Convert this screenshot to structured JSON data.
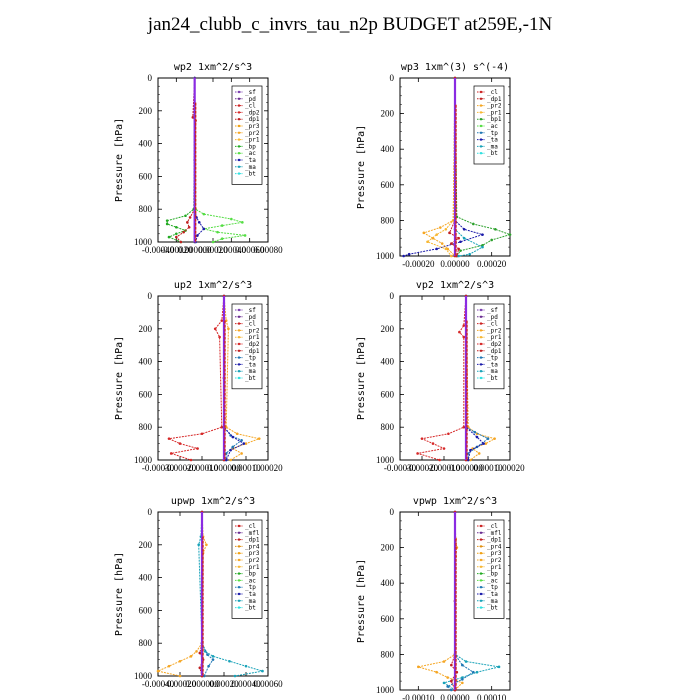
{
  "page": {
    "title": "jan24_clubb_c_invrs_tau_n2p  BUDGET at259E,-1N"
  },
  "colors": {
    "_sf": "#7b3fb0",
    "_pd": "#6a2c91",
    "_cl": "#cc2222",
    "_dp2": "#d62828",
    "_dp1": "#c02020",
    "_pr3": "#f0a010",
    "_pr2": "#f5a623",
    "_pr1": "#f7b733",
    "_pr4": "#e09010",
    "_mfl": "#6a2c91",
    "_bp1": "#2ca02c",
    "_bp": "#22aa22",
    "_ac": "#55dd44",
    "_tp": "#1f77b4",
    "_ta": "#1a1aaa",
    "_ma": "#17a2b8",
    "_bt": "#2ee0e0"
  },
  "chart_data": [
    {
      "type": "line",
      "title": "wp2  1xm^2/s^3",
      "ylabel": "Pressure [hPa]",
      "xlim": [
        -0.0004,
        0.0008
      ],
      "ylim": [
        1000,
        0
      ],
      "xticks": [
        -0.0004,
        -0.0002,
        0.0,
        0.0002,
        0.0004,
        0.0006,
        0.0008
      ],
      "xticklabels": [
        "-0.00040",
        "-0.00020",
        "0.000000",
        "0.00020",
        "0.00040",
        "0.00060",
        "0.00080"
      ],
      "yticks": [
        0,
        200,
        400,
        600,
        800,
        1000
      ],
      "legend": [
        "_sf",
        "_pd",
        "_cl",
        "_dp2",
        "_dp1",
        "_pr3",
        "_pr2",
        "_pr1",
        "_bp",
        "_ac",
        "_ta",
        "_ma",
        "_bt"
      ],
      "legend_placement": "top-right",
      "series": [
        {
          "name": "_ac",
          "pressure": [
            0,
            800,
            830,
            860,
            880,
            900,
            920,
            940,
            960,
            980,
            1000
          ],
          "values": [
            0,
            1e-05,
            0.0001,
            0.0004,
            0.00052,
            0.0003,
            0.0001,
            0.00025,
            0.00055,
            0.0003,
            0.0002
          ]
        },
        {
          "name": "_bp",
          "pressure": [
            0,
            800,
            840,
            870,
            890,
            910,
            930,
            950,
            970,
            1000
          ],
          "values": [
            0,
            -1e-05,
            -0.0001,
            -0.0003,
            -0.0003,
            -0.0002,
            -0.0001,
            -0.0002,
            -0.00028,
            -0.00015
          ]
        },
        {
          "name": "_dp1",
          "pressure": [
            0,
            240,
            260,
            800,
            850,
            880,
            910,
            940,
            970,
            1000
          ],
          "values": [
            0,
            -2e-05,
            1e-05,
            0,
            -5e-05,
            -8e-05,
            -6e-05,
            -0.00012,
            -0.0002,
            -0.00015
          ]
        },
        {
          "name": "_ta",
          "pressure": [
            0,
            800,
            850,
            880,
            920,
            960,
            1000
          ],
          "values": [
            0,
            0,
            2e-05,
            5e-05,
            0.0001,
            3e-05,
            1e-05
          ]
        },
        {
          "name": "_bt",
          "pressure": [
            0,
            500,
            1000
          ],
          "values": [
            0,
            0,
            0
          ]
        },
        {
          "name": "_pd",
          "pressure": [
            0,
            500,
            1000
          ],
          "values": [
            0,
            0,
            0
          ]
        }
      ]
    },
    {
      "type": "line",
      "title": "wp3  1xm^(3) s^(-4)",
      "ylabel": "Pressure [hPa]",
      "xlim": [
        -0.0003,
        0.0003
      ],
      "ylim": [
        1000,
        0
      ],
      "xticks": [
        -0.0002,
        0.0,
        0.0002
      ],
      "xticklabels": [
        "-0.00020",
        "0.00000",
        "0.00020"
      ],
      "yticks": [
        0,
        200,
        400,
        600,
        800,
        1000
      ],
      "legend": [
        "_cl",
        "_dp1",
        "_pr2",
        "_pr1",
        "_bp1",
        "_ac",
        "_tp",
        "_ta",
        "_ma",
        "_bt"
      ],
      "legend_placement": "top-right",
      "series": [
        {
          "name": "_bp1",
          "pressure": [
            0,
            780,
            820,
            850,
            880,
            910,
            940,
            970,
            1000
          ],
          "values": [
            0,
            1e-05,
            0.0001,
            0.00022,
            0.0003,
            0.0002,
            0.00015,
            3e-05,
            1e-05
          ]
        },
        {
          "name": "_ta",
          "pressure": [
            0,
            800,
            850,
            880,
            920,
            960,
            990,
            1000
          ],
          "values": [
            0,
            0,
            5e-05,
            0.00015,
            3e-05,
            -0.0001,
            -0.00025,
            -0.00028
          ]
        },
        {
          "name": "_pr2",
          "pressure": [
            0,
            800,
            840,
            870,
            900,
            930,
            960,
            1000
          ],
          "values": [
            0,
            -1e-05,
            -8e-05,
            -0.00017,
            -0.00012,
            -7e-05,
            -4e-05,
            0
          ]
        },
        {
          "name": "_pr1",
          "pressure": [
            0,
            800,
            850,
            880,
            920,
            960,
            1000
          ],
          "values": [
            0,
            -1e-05,
            -5e-05,
            -0.0001,
            -0.00015,
            -5e-05,
            -2e-05
          ]
        },
        {
          "name": "_dp1",
          "pressure": [
            0,
            800,
            870,
            900,
            930,
            960,
            1000
          ],
          "values": [
            0,
            0,
            -3e-05,
            2e-05,
            -2e-05,
            2e-05,
            1e-05
          ]
        },
        {
          "name": "_ma",
          "pressure": [
            0,
            850,
            900,
            950,
            990,
            1000
          ],
          "values": [
            0,
            0,
            5e-05,
            0.00015,
            8e-05,
            2e-05
          ]
        },
        {
          "name": "_cl",
          "pressure": [
            0,
            500,
            1000
          ],
          "values": [
            0,
            0,
            0
          ]
        }
      ]
    },
    {
      "type": "line",
      "title": "up2  1xm^2/s^3",
      "ylabel": "Pressure [hPa]",
      "xlim": [
        -0.0003,
        0.0002
      ],
      "ylim": [
        1000,
        0
      ],
      "xticks": [
        -0.0003,
        -0.0002,
        -0.0001,
        0.0,
        0.0001,
        0.0002
      ],
      "xticklabels": [
        "-0.00030",
        "-0.00020",
        "-0.00010",
        "0.000000",
        "0.00010",
        "0.00020"
      ],
      "yticks": [
        0,
        200,
        400,
        600,
        800,
        1000
      ],
      "legend": [
        "_sf",
        "_pd",
        "_cl",
        "_pr2",
        "_pr1",
        "_dp2",
        "_dp1",
        "_tp",
        "_ta",
        "_ma",
        "_bt"
      ],
      "legend_placement": "top-right",
      "series": [
        {
          "name": "_dp2",
          "pressure": [
            0,
            150,
            200,
            250,
            800,
            840,
            870,
            900,
            930,
            960,
            1000
          ],
          "values": [
            0,
            -1e-05,
            -4e-05,
            -2e-05,
            -1e-05,
            -0.0001,
            -0.00025,
            -0.0002,
            -0.00012,
            -0.00024,
            -0.00015
          ]
        },
        {
          "name": "_pr2",
          "pressure": [
            0,
            150,
            200,
            800,
            840,
            870,
            900,
            930,
            960,
            1000
          ],
          "values": [
            0,
            1e-05,
            2e-05,
            1e-05,
            6e-05,
            0.00016,
            0.0001,
            4e-05,
            8e-05,
            3e-05
          ]
        },
        {
          "name": "_tp",
          "pressure": [
            0,
            800,
            850,
            880,
            920,
            960,
            1000
          ],
          "values": [
            0,
            0,
            3e-05,
            8e-05,
            4e-05,
            1e-05,
            1e-05
          ]
        },
        {
          "name": "_ta",
          "pressure": [
            0,
            800,
            860,
            900,
            940,
            1000
          ],
          "values": [
            0,
            0,
            4e-05,
            9e-05,
            3e-05,
            1e-05
          ]
        },
        {
          "name": "_pd",
          "pressure": [
            0,
            500,
            1000
          ],
          "values": [
            0,
            0,
            0
          ]
        },
        {
          "name": "_cl",
          "pressure": [
            0,
            500,
            1000
          ],
          "values": [
            0,
            0,
            0
          ]
        }
      ]
    },
    {
      "type": "line",
      "title": "vp2  1xm^2/s^3",
      "ylabel": "Pressure [hPa]",
      "xlim": [
        -0.0003,
        0.0002
      ],
      "ylim": [
        1000,
        0
      ],
      "xticks": [
        -0.0003,
        -0.0002,
        -0.0001,
        0.0,
        0.0001,
        0.0002
      ],
      "xticklabels": [
        "-0.00030",
        "-0.00020",
        "-0.00010",
        "0.000000",
        "0.00010",
        "0.00020"
      ],
      "yticks": [
        0,
        200,
        400,
        600,
        800,
        1000
      ],
      "legend": [
        "_sf",
        "_pd",
        "_cl",
        "_pr2",
        "_pr1",
        "_dp2",
        "_dp1",
        "_tp",
        "_ta",
        "_ma",
        "_bt"
      ],
      "legend_placement": "top-right",
      "series": [
        {
          "name": "_dp2",
          "pressure": [
            0,
            180,
            220,
            250,
            800,
            840,
            870,
            900,
            930,
            960,
            1000
          ],
          "values": [
            0,
            -1e-05,
            -3e-05,
            -1e-05,
            -1e-05,
            -8e-05,
            -0.0002,
            -0.00015,
            -0.0001,
            -0.00022,
            -0.00012
          ]
        },
        {
          "name": "_pr2",
          "pressure": [
            0,
            800,
            840,
            870,
            900,
            930,
            960,
            1000
          ],
          "values": [
            0,
            1e-05,
            5e-05,
            0.00013,
            9e-05,
            3e-05,
            6e-05,
            2e-05
          ]
        },
        {
          "name": "_tp",
          "pressure": [
            0,
            800,
            830,
            870,
            920,
            960,
            1000
          ],
          "values": [
            0,
            0,
            4e-05,
            0.0001,
            5e-05,
            1e-05,
            1e-05
          ]
        },
        {
          "name": "_ta",
          "pressure": [
            0,
            800,
            860,
            900,
            940,
            1000
          ],
          "values": [
            0,
            0,
            5e-05,
            8e-05,
            2e-05,
            1e-05
          ]
        },
        {
          "name": "_pd",
          "pressure": [
            0,
            500,
            1000
          ],
          "values": [
            0,
            0,
            0
          ]
        },
        {
          "name": "_cl",
          "pressure": [
            0,
            500,
            1000
          ],
          "values": [
            0,
            0,
            0
          ]
        }
      ]
    },
    {
      "type": "line",
      "title": "upwp  1xm^2/s^3",
      "ylabel": "Pressure [hPa]",
      "xlim": [
        -0.0004,
        0.0006
      ],
      "ylim": [
        1000,
        0
      ],
      "xticks": [
        -0.0004,
        -0.0002,
        0.0,
        0.0002,
        0.0004,
        0.0006
      ],
      "xticklabels": [
        "-0.00040",
        "-0.00020",
        "0.000000",
        "0.00020",
        "0.00040",
        "0.00060"
      ],
      "yticks": [
        0,
        200,
        400,
        600,
        800,
        1000
      ],
      "legend": [
        "_cl",
        "_mfl",
        "_dp1",
        "_pr4",
        "_pr3",
        "_pr2",
        "_pr1",
        "_bp",
        "_ac",
        "_tp",
        "_ta",
        "_ma",
        "_bt"
      ],
      "legend_placement": "top-right",
      "series": [
        {
          "name": "_pr2",
          "pressure": [
            0,
            150,
            200,
            250,
            800,
            850,
            880,
            910,
            940,
            970,
            1000
          ],
          "values": [
            0,
            1e-05,
            4e-05,
            1e-05,
            0,
            -5e-05,
            -0.0001,
            -0.0002,
            -0.0003,
            -0.0004,
            -0.0002
          ]
        },
        {
          "name": "_ma",
          "pressure": [
            0,
            150,
            200,
            800,
            850,
            880,
            910,
            940,
            970,
            1000
          ],
          "values": [
            0,
            -1e-05,
            -3e-05,
            0,
            3e-05,
            0.0001,
            0.00025,
            0.0004,
            0.00055,
            0.0003
          ]
        },
        {
          "name": "_tp",
          "pressure": [
            0,
            800,
            870,
            900,
            940,
            1000
          ],
          "values": [
            0,
            0,
            5e-05,
            0.0001,
            6e-05,
            2e-05
          ]
        },
        {
          "name": "_dp1",
          "pressure": [
            0,
            800,
            860,
            900,
            950,
            1000
          ],
          "values": [
            0,
            0,
            -2e-05,
            1e-05,
            -2e-05,
            0
          ]
        },
        {
          "name": "_mfl",
          "pressure": [
            0,
            500,
            1000
          ],
          "values": [
            0,
            0,
            0
          ]
        },
        {
          "name": "_cl",
          "pressure": [
            0,
            500,
            1000
          ],
          "values": [
            0,
            0,
            0
          ]
        }
      ]
    },
    {
      "type": "line",
      "title": "vpwp  1xm^2/s^3",
      "ylabel": "Pressure [hPa]",
      "xlim": [
        -0.00015,
        0.00015
      ],
      "ylim": [
        1000,
        0
      ],
      "xticks": [
        -0.0001,
        0.0,
        0.0001
      ],
      "xticklabels": [
        "-0.00010",
        "0.00000",
        "0.00010"
      ],
      "yticks": [
        0,
        200,
        400,
        600,
        800,
        1000
      ],
      "legend": [
        "_cl",
        "_mfl",
        "_dp1",
        "_pr4",
        "_pr3",
        "_pr2",
        "_pr1",
        "_bp",
        "_ac",
        "_tp",
        "_ta",
        "_ma",
        "_bt"
      ],
      "legend_placement": "top-right",
      "series": [
        {
          "name": "_pr2",
          "pressure": [
            0,
            150,
            200,
            250,
            800,
            840,
            870,
            900,
            930,
            960,
            1000
          ],
          "values": [
            0,
            2e-06,
            5e-06,
            2e-06,
            0,
            -3e-05,
            -0.0001,
            -5e-05,
            -2e-05,
            2e-05,
            0
          ]
        },
        {
          "name": "_ma",
          "pressure": [
            0,
            800,
            840,
            870,
            900,
            930,
            960,
            1000
          ],
          "values": [
            0,
            0,
            3e-05,
            0.00012,
            6e-05,
            2e-05,
            -3e-05,
            0
          ]
        },
        {
          "name": "_tp",
          "pressure": [
            0,
            800,
            860,
            900,
            940,
            980,
            1000
          ],
          "values": [
            0,
            0,
            2e-05,
            5e-05,
            2e-05,
            -2e-05,
            -1e-05
          ]
        },
        {
          "name": "_dp1",
          "pressure": [
            0,
            800,
            860,
            900,
            950,
            1000
          ],
          "values": [
            0,
            0,
            -1e-05,
            5e-06,
            -1e-05,
            0
          ]
        },
        {
          "name": "_mfl",
          "pressure": [
            0,
            500,
            1000
          ],
          "values": [
            0,
            0,
            0
          ]
        },
        {
          "name": "_cl",
          "pressure": [
            0,
            500,
            1000
          ],
          "values": [
            0,
            0,
            0
          ]
        }
      ]
    }
  ]
}
